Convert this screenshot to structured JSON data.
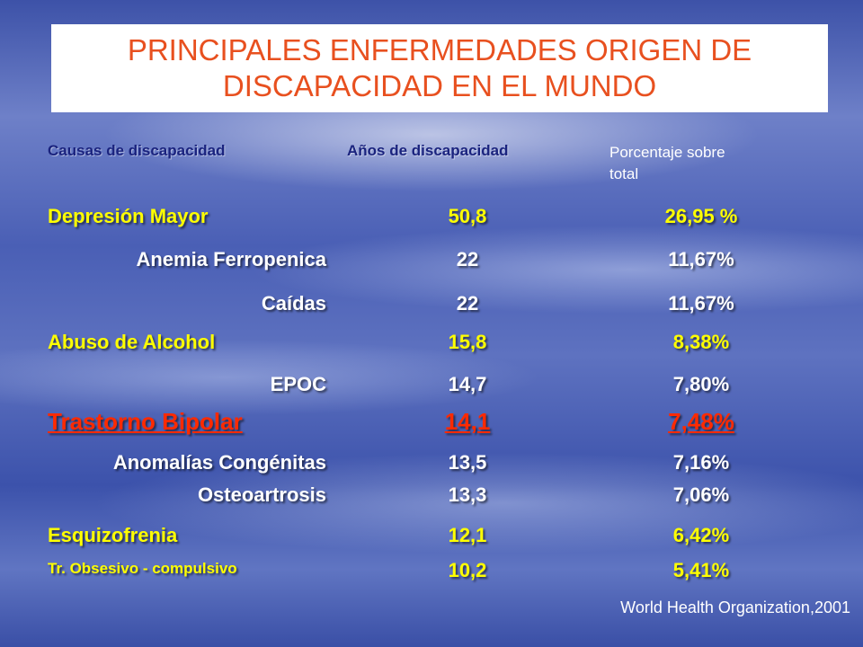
{
  "title": "PRINCIPALES ENFERMEDADES ORIGEN DE DISCAPACIDAD EN EL MUNDO",
  "headers": {
    "col1": "Causas de discapacidad",
    "col2": "Años de discapacidad",
    "col3_line1": "Porcentaje sobre",
    "col3_line2": "total"
  },
  "rows": [
    {
      "cause": "Depresión Mayor",
      "years": "50,8",
      "percent": "26,95 %"
    },
    {
      "cause": "Anemia Ferropenica",
      "years": "22",
      "percent": "11,67%"
    },
    {
      "cause": "Caídas",
      "years": "22",
      "percent": "11,67%"
    },
    {
      "cause": "Abuso de Alcohol",
      "years": "15,8",
      "percent": "8,38%"
    },
    {
      "cause": "EPOC",
      "years": "14,7",
      "percent": "7,80%"
    },
    {
      "cause": "Trastorno Bipolar",
      "years": "14,1",
      "percent": "7,48%"
    },
    {
      "cause": "Anomalías Congénitas",
      "years": "13,5",
      "percent": "7,16%"
    },
    {
      "cause": "Osteoartrosis",
      "years": "13,3",
      "percent": "7,06%"
    },
    {
      "cause": "Esquizofrenia",
      "years": "12,1",
      "percent": "6,42%"
    },
    {
      "cause": "Tr. Obsesivo - compulsivo",
      "years": "10,2",
      "percent": "5,41%"
    }
  ],
  "source": "World Health Organization,2001",
  "colors": {
    "title": "#e8501f",
    "highlight_row": "#ff2a00",
    "yellow_text": "#ffff00",
    "white_text": "#ffffff",
    "header_text": "#1a237e"
  }
}
